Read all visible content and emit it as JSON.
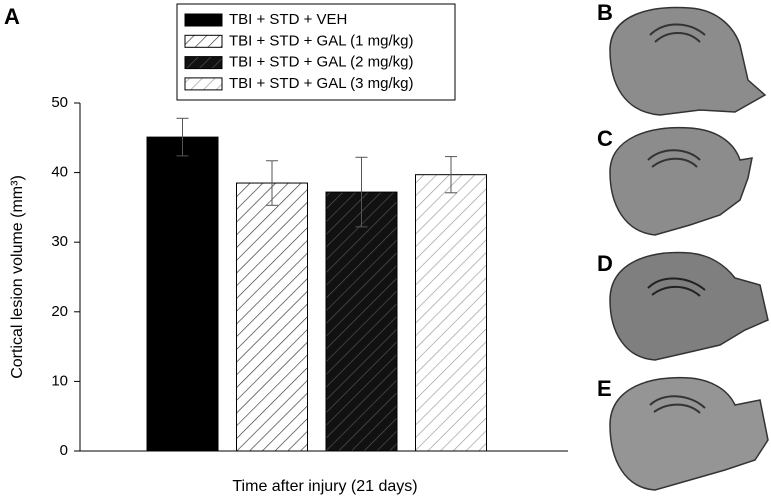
{
  "chart_data": {
    "type": "bar",
    "panel": "A",
    "categories": [
      null
    ],
    "series": [
      {
        "name": "TBI + STD + VEH",
        "color": "#000000",
        "values": [
          45.1
        ],
        "errors": [
          2.7
        ]
      },
      {
        "name": "TBI + STD + GAL (1 mg/kg)",
        "color": "#ffffff",
        "hatch": "#333333",
        "values": [
          38.5
        ],
        "errors": [
          3.2
        ]
      },
      {
        "name": "TBI + STD + GAL (2 mg/kg)",
        "color": "#111111",
        "hatch": "#555555",
        "values": [
          37.2
        ],
        "errors": [
          5.0
        ]
      },
      {
        "name": "TBI + STD + GAL (3 mg/kg)",
        "color": "#ffffff",
        "hatch": "#999999",
        "values": [
          39.7
        ],
        "errors": [
          2.6
        ]
      }
    ],
    "xlabel": "Time after injury (21 days)",
    "ylabel": "Cortical lesion volume (mm³)",
    "ylim": [
      0,
      50
    ],
    "yticks": [
      0,
      10,
      20,
      30,
      40,
      50
    ],
    "grid": false
  },
  "images": [
    {
      "label": "B"
    },
    {
      "label": "C"
    },
    {
      "label": "D"
    },
    {
      "label": "E"
    }
  ]
}
